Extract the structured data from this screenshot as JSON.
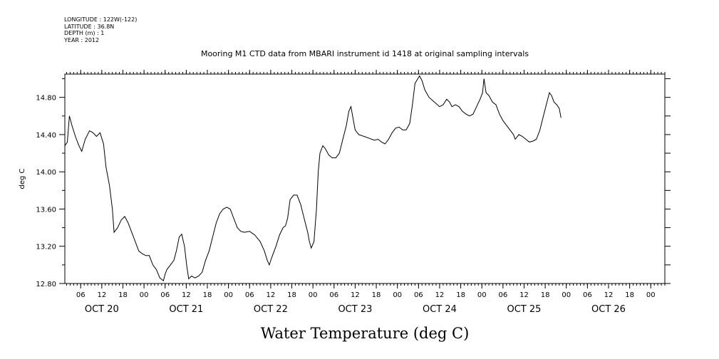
{
  "header": {
    "lines": [
      "LONGITUDE : 122W(-122)",
      "LATITUDE : 36.8N",
      "DEPTH (m) : 1",
      "YEAR : 2012"
    ]
  },
  "chart_data": {
    "type": "line",
    "title": "Mooring M1 CTD data from MBARI instrument id 1418 at original sampling intervals",
    "xlabel": "Water Temperature (deg C)",
    "ylabel": "deg C",
    "x_unit": "hours since 2012-10-20 00:00",
    "xlim": [
      1.5,
      172
    ],
    "ylim": [
      12.8,
      15.05
    ],
    "y_ticks": [
      12.8,
      13.2,
      13.6,
      14.0,
      14.4,
      14.8
    ],
    "y_tick_labels": [
      "12.80",
      "13.20",
      "13.60",
      "14.00",
      "14.40",
      "14.80"
    ],
    "hour_ticks": [
      6,
      12,
      18,
      24,
      30,
      36,
      42,
      48,
      54,
      60,
      66,
      72,
      78,
      84,
      90,
      96,
      102,
      108,
      114,
      120,
      126,
      132,
      138,
      144,
      150,
      156,
      162,
      168
    ],
    "hour_tick_labels": [
      "06",
      "12",
      "18",
      "00",
      "06",
      "12",
      "18",
      "00",
      "06",
      "12",
      "18",
      "00",
      "06",
      "12",
      "18",
      "00",
      "06",
      "12",
      "18",
      "00",
      "06",
      "12",
      "18",
      "00",
      "06",
      "12",
      "18",
      "00"
    ],
    "day_labels": [
      {
        "hour": 12,
        "label": "OCT 20"
      },
      {
        "hour": 36,
        "label": "OCT 21"
      },
      {
        "hour": 60,
        "label": "OCT 22"
      },
      {
        "hour": 84,
        "label": "OCT 23"
      },
      {
        "hour": 108,
        "label": "OCT 24"
      },
      {
        "hour": 132,
        "label": "OCT 25"
      },
      {
        "hour": 156,
        "label": "OCT 26"
      }
    ],
    "grid": false,
    "line_color": "#000000",
    "series": [
      {
        "values": [
          [
            1.5,
            14.28
          ],
          [
            2.2,
            14.32
          ],
          [
            2.8,
            14.6
          ],
          [
            3.5,
            14.5
          ],
          [
            4.5,
            14.38
          ],
          [
            5.5,
            14.28
          ],
          [
            6.3,
            14.22
          ],
          [
            7.3,
            14.35
          ],
          [
            8.5,
            14.44
          ],
          [
            9.5,
            14.42
          ],
          [
            10.5,
            14.38
          ],
          [
            11.5,
            14.42
          ],
          [
            12.5,
            14.3
          ],
          [
            13.2,
            14.05
          ],
          [
            14.2,
            13.85
          ],
          [
            15.0,
            13.6
          ],
          [
            15.5,
            13.35
          ],
          [
            16.5,
            13.4
          ],
          [
            17.5,
            13.48
          ],
          [
            18.5,
            13.52
          ],
          [
            19.5,
            13.45
          ],
          [
            20.5,
            13.35
          ],
          [
            21.5,
            13.25
          ],
          [
            22.5,
            13.15
          ],
          [
            23.5,
            13.12
          ],
          [
            24.5,
            13.1
          ],
          [
            25.5,
            13.1
          ],
          [
            26.5,
            13.0
          ],
          [
            27.5,
            12.95
          ],
          [
            28.5,
            12.86
          ],
          [
            29.5,
            12.83
          ],
          [
            30.0,
            12.9
          ],
          [
            30.5,
            12.95
          ],
          [
            31.5,
            13.0
          ],
          [
            32.5,
            13.05
          ],
          [
            33.2,
            13.15
          ],
          [
            34.0,
            13.3
          ],
          [
            34.7,
            13.33
          ],
          [
            35.5,
            13.2
          ],
          [
            36.1,
            13.0
          ],
          [
            36.7,
            12.85
          ],
          [
            37.5,
            12.88
          ],
          [
            38.5,
            12.86
          ],
          [
            39.5,
            12.88
          ],
          [
            40.5,
            12.92
          ],
          [
            41.5,
            13.05
          ],
          [
            42.5,
            13.15
          ],
          [
            43.5,
            13.3
          ],
          [
            44.5,
            13.45
          ],
          [
            45.5,
            13.55
          ],
          [
            46.5,
            13.6
          ],
          [
            47.5,
            13.62
          ],
          [
            48.5,
            13.6
          ],
          [
            49.5,
            13.5
          ],
          [
            50.5,
            13.4
          ],
          [
            51.5,
            13.36
          ],
          [
            52.5,
            13.35
          ],
          [
            54.0,
            13.36
          ],
          [
            55.5,
            13.32
          ],
          [
            57.0,
            13.25
          ],
          [
            58.2,
            13.15
          ],
          [
            59.0,
            13.05
          ],
          [
            59.6,
            13.0
          ],
          [
            60.3,
            13.08
          ],
          [
            61.5,
            13.2
          ],
          [
            62.5,
            13.32
          ],
          [
            63.5,
            13.4
          ],
          [
            64.2,
            13.42
          ],
          [
            64.8,
            13.5
          ],
          [
            65.5,
            13.7
          ],
          [
            66.5,
            13.75
          ],
          [
            67.5,
            13.75
          ],
          [
            68.5,
            13.65
          ],
          [
            69.5,
            13.5
          ],
          [
            70.5,
            13.35
          ],
          [
            71.0,
            13.25
          ],
          [
            71.5,
            13.18
          ],
          [
            72.3,
            13.25
          ],
          [
            73.0,
            13.6
          ],
          [
            73.5,
            14.0
          ],
          [
            74.0,
            14.2
          ],
          [
            74.8,
            14.28
          ],
          [
            75.5,
            14.25
          ],
          [
            76.5,
            14.18
          ],
          [
            77.5,
            14.15
          ],
          [
            78.5,
            14.15
          ],
          [
            79.5,
            14.2
          ],
          [
            80.5,
            14.35
          ],
          [
            81.5,
            14.5
          ],
          [
            82.2,
            14.65
          ],
          [
            82.8,
            14.7
          ],
          [
            83.5,
            14.55
          ],
          [
            84.0,
            14.45
          ],
          [
            85.0,
            14.4
          ],
          [
            86.5,
            14.38
          ],
          [
            88.0,
            14.36
          ],
          [
            89.5,
            14.34
          ],
          [
            90.5,
            14.35
          ],
          [
            91.5,
            14.32
          ],
          [
            92.5,
            14.3
          ],
          [
            93.5,
            14.35
          ],
          [
            94.5,
            14.42
          ],
          [
            95.5,
            14.47
          ],
          [
            96.5,
            14.48
          ],
          [
            97.5,
            14.45
          ],
          [
            98.5,
            14.45
          ],
          [
            99.5,
            14.52
          ],
          [
            100.2,
            14.7
          ],
          [
            101.0,
            14.95
          ],
          [
            101.8,
            15.0
          ],
          [
            102.3,
            15.03
          ],
          [
            103.0,
            14.98
          ],
          [
            103.8,
            14.88
          ],
          [
            105.0,
            14.8
          ],
          [
            106.5,
            14.75
          ],
          [
            108.0,
            14.7
          ],
          [
            109.0,
            14.72
          ],
          [
            110.0,
            14.78
          ],
          [
            110.8,
            14.75
          ],
          [
            111.5,
            14.7
          ],
          [
            112.5,
            14.72
          ],
          [
            113.5,
            14.7
          ],
          [
            114.5,
            14.65
          ],
          [
            115.5,
            14.62
          ],
          [
            116.5,
            14.6
          ],
          [
            117.5,
            14.62
          ],
          [
            118.5,
            14.7
          ],
          [
            119.5,
            14.78
          ],
          [
            120.2,
            14.85
          ],
          [
            120.6,
            15.0
          ],
          [
            121.2,
            14.85
          ],
          [
            122.0,
            14.82
          ],
          [
            123.0,
            14.75
          ],
          [
            124.0,
            14.72
          ],
          [
            125.0,
            14.62
          ],
          [
            126.0,
            14.55
          ],
          [
            127.0,
            14.5
          ],
          [
            128.0,
            14.45
          ],
          [
            129.0,
            14.4
          ],
          [
            129.5,
            14.35
          ],
          [
            130.5,
            14.4
          ],
          [
            131.5,
            14.38
          ],
          [
            132.5,
            14.35
          ],
          [
            133.5,
            14.32
          ],
          [
            134.5,
            14.33
          ],
          [
            135.5,
            14.35
          ],
          [
            136.5,
            14.45
          ],
          [
            137.5,
            14.6
          ],
          [
            138.5,
            14.75
          ],
          [
            139.2,
            14.85
          ],
          [
            139.8,
            14.82
          ],
          [
            140.5,
            14.75
          ],
          [
            141.3,
            14.72
          ],
          [
            142.0,
            14.68
          ],
          [
            142.5,
            14.58
          ]
        ]
      }
    ]
  }
}
